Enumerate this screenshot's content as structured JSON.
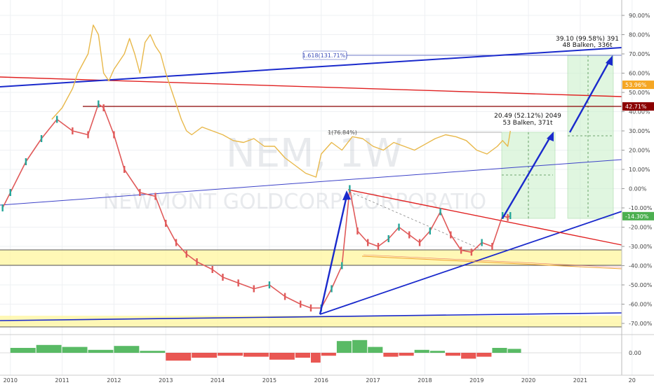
{
  "watermark": {
    "symbol": "NEM, 1W",
    "company": "NEWMONT GOLDCORP CORPORATIO"
  },
  "y_axis": {
    "ticks": [
      "90.00%",
      "80.00%",
      "70.00%",
      "60.00%",
      "50.00%",
      "40.00%",
      "30.00%",
      "20.00%",
      "10.00%",
      "0.00%",
      "-10.00%",
      "-20.00%",
      "-30.00%",
      "-40.00%",
      "-50.00%",
      "-60.00%",
      "-70.00%"
    ],
    "badges": [
      {
        "label": "53.96%",
        "value": 53.96,
        "color": "#f5a623"
      },
      {
        "label": "42.71%",
        "value": 42.71,
        "color": "#8b0000"
      },
      {
        "label": "-14.30%",
        "value": -14.3,
        "color": "#4caf50"
      }
    ]
  },
  "x_axis": {
    "ticks": [
      "2010",
      "2011",
      "2012",
      "2013",
      "2014",
      "2015",
      "2016",
      "2017",
      "2018",
      "2019",
      "2020",
      "2021",
      "20"
    ]
  },
  "oscillator": {
    "ticks": [
      "0.00"
    ]
  },
  "annotations": {
    "fib_top": "1.618(131.71%)",
    "fib_mid": "1(76.84%)",
    "proj1_line1": "20.49 (52.12%) 2049",
    "proj1_line2": "53 Balken, 371t",
    "proj2_line1": "39.10 (99.58%) 391",
    "proj2_line2": "48 Balken, 336t"
  },
  "chart_data": {
    "type": "line",
    "x_unit": "year",
    "y_unit": "percent",
    "ylim": [
      -70,
      95
    ],
    "xlim": [
      2009.8,
      2021.8
    ],
    "series": [
      {
        "color": "#e8b84a",
        "x": [
          2010.8,
          2011.0,
          2011.2,
          2011.3,
          2011.5,
          2011.6,
          2011.7,
          2011.8,
          2011.9,
          2012.0,
          2012.2,
          2012.3,
          2012.4,
          2012.5,
          2012.6,
          2012.7,
          2012.8,
          2012.9,
          2013.0,
          2013.1,
          2013.2,
          2013.3,
          2013.4,
          2013.5,
          2013.7,
          2013.9,
          2014.1,
          2014.3,
          2014.5,
          2014.7,
          2014.9,
          2015.1,
          2015.3,
          2015.5,
          2015.7,
          2015.9,
          2016.0,
          2016.2,
          2016.4,
          2016.6,
          2016.8,
          2017.0,
          2017.2,
          2017.4,
          2017.6,
          2017.8,
          2018.0,
          2018.2,
          2018.4,
          2018.6,
          2018.8,
          2019.0,
          2019.2,
          2019.4,
          2019.5,
          2019.6,
          2019.65
        ],
        "y": [
          36,
          42,
          52,
          60,
          70,
          85,
          80,
          60,
          56,
          62,
          70,
          78,
          70,
          60,
          76,
          80,
          74,
          70,
          60,
          52,
          44,
          36,
          30,
          28,
          32,
          30,
          28,
          25,
          24,
          26,
          22,
          22,
          16,
          12,
          8,
          6,
          18,
          24,
          20,
          27,
          26,
          22,
          20,
          24,
          22,
          20,
          23,
          26,
          28,
          27,
          25,
          20,
          18,
          22,
          25,
          22,
          30
        ]
      },
      {
        "color": "#e05a5a",
        "x": [
          2009.85,
          2010.0,
          2010.3,
          2010.6,
          2010.9,
          2011.2,
          2011.5,
          2011.7,
          2011.8,
          2012.0,
          2012.2,
          2012.5,
          2012.8,
          2013.0,
          2013.2,
          2013.4,
          2013.6,
          2013.9,
          2014.1,
          2014.4,
          2014.7,
          2015.0,
          2015.3,
          2015.6,
          2015.8,
          2016.0,
          2016.2,
          2016.4,
          2016.55,
          2016.7,
          2016.9,
          2017.1,
          2017.3,
          2017.5,
          2017.7,
          2017.9,
          2018.1,
          2018.3,
          2018.5,
          2018.7,
          2018.9,
          2019.1,
          2019.3,
          2019.5,
          2019.6,
          2019.65
        ],
        "y": [
          -10,
          -2,
          14,
          26,
          36,
          30,
          28,
          44,
          42,
          28,
          10,
          -2,
          -4,
          -18,
          -28,
          -34,
          -38,
          -42,
          -46,
          -49,
          -52,
          -50,
          -56,
          -60,
          -62,
          -62,
          -52,
          -40,
          0,
          -22,
          -28,
          -30,
          -26,
          -20,
          -24,
          -28,
          -22,
          -12,
          -24,
          -32,
          -33,
          -28,
          -30,
          -14,
          -15,
          -14
        ]
      }
    ],
    "oscillator": {
      "zero_label": "0.00",
      "x": [
        2010.0,
        2010.5,
        2011.0,
        2011.5,
        2012.0,
        2012.5,
        2013.0,
        2013.5,
        2014.0,
        2014.5,
        2015.0,
        2015.5,
        2015.8,
        2016.0,
        2016.3,
        2016.6,
        2016.9,
        2017.2,
        2017.5,
        2017.8,
        2018.1,
        2018.4,
        2018.7,
        2019.0,
        2019.3,
        2019.6
      ],
      "y": [
        0.5,
        0.8,
        0.6,
        0.3,
        0.7,
        0.2,
        -0.8,
        -0.5,
        -0.3,
        -0.4,
        -0.7,
        -0.5,
        -1.0,
        -0.3,
        1.2,
        1.3,
        0.6,
        -0.4,
        -0.3,
        0.3,
        0.2,
        -0.3,
        -0.6,
        -0.4,
        0.5,
        0.4
      ]
    }
  }
}
